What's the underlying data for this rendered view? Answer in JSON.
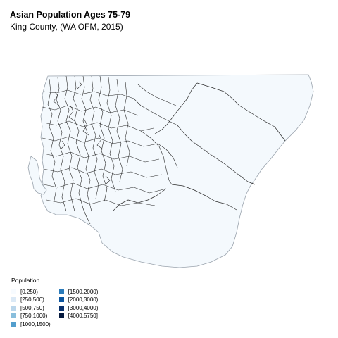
{
  "header": {
    "title": "Asian Population Ages 75-79",
    "subtitle": "King County, (WA OFM, 2015)"
  },
  "map": {
    "fill_color": "#f4f9fd",
    "stroke_color": "#2a2a2a",
    "outline_color": "#9aa3ad"
  },
  "legend": {
    "title": "Population",
    "items": [
      {
        "label": "[0,250)",
        "color": "#f7fbff"
      },
      {
        "label": "[250,500)",
        "color": "#dbe9f6"
      },
      {
        "label": "[500,750)",
        "color": "#bad6eb"
      },
      {
        "label": "[750,1000)",
        "color": "#89bedc"
      },
      {
        "label": "[1000,1500)",
        "color": "#539ecd"
      },
      {
        "label": "[1500,2000)",
        "color": "#2b7bba"
      },
      {
        "label": "[2000,3000)",
        "color": "#0b559f"
      },
      {
        "label": "[3000,4000)",
        "color": "#08306b"
      },
      {
        "label": "[4000,5750]",
        "color": "#061a3f"
      }
    ]
  }
}
